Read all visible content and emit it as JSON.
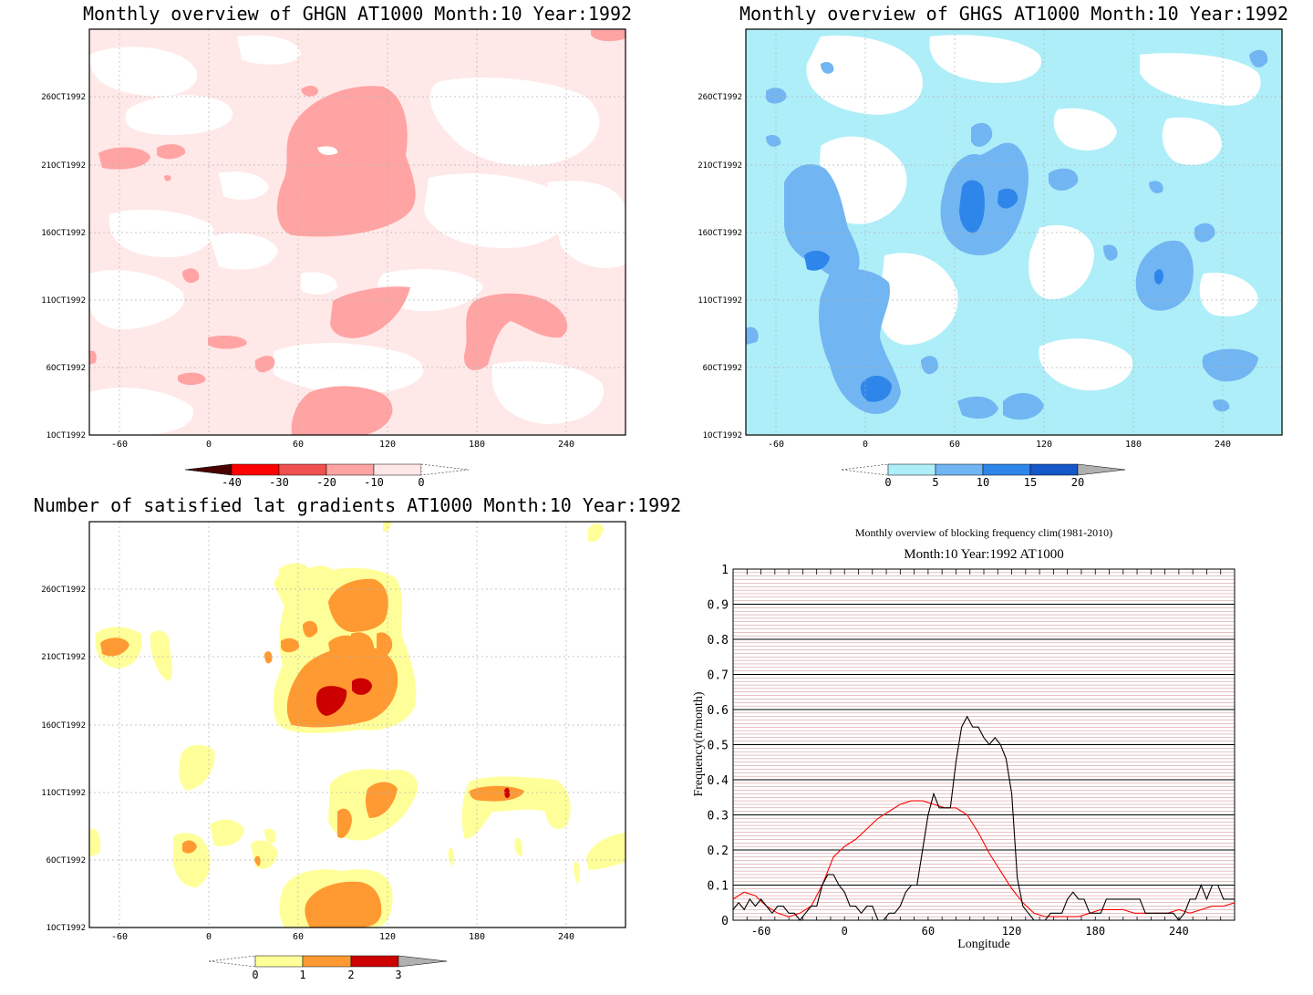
{
  "colors": {
    "red_scale": [
      "#4a0000",
      "#ff0000",
      "#f05050",
      "#ffa3a3",
      "#ffe8e8",
      "#ffffff"
    ],
    "blue_scale": [
      "#ffffff",
      "#aeeef8",
      "#71b5f2",
      "#2f86ea",
      "#1457c8",
      "#b0b0b0"
    ],
    "orange_scale": [
      "#ffffff",
      "#ffff9a",
      "#ff9a32",
      "#cc0000",
      "#b0b0b0"
    ],
    "clim_line": "#ff0000",
    "obs_line": "#000000",
    "grid_major": "#000000",
    "grid_minor": "#a02020"
  },
  "panels": [
    {
      "id": "ghgn",
      "title": "Monthly overview of GHGN AT1000 Month:10 Year:1992",
      "x_ticks": [
        "-60",
        "0",
        "60",
        "120",
        "180",
        "240"
      ],
      "y_ticks": [
        "1OCT1992",
        "6OCT1992",
        "11OCT1992",
        "16OCT1992",
        "21OCT1992",
        "26OCT1992"
      ],
      "colorbar_labels": [
        "-40",
        "-30",
        "-20",
        "-10",
        "0"
      ]
    },
    {
      "id": "ghgs",
      "title": "Monthly overview of GHGS AT1000 Month:10 Year:1992",
      "x_ticks": [
        "-60",
        "0",
        "60",
        "120",
        "180",
        "240"
      ],
      "y_ticks": [
        "1OCT1992",
        "6OCT1992",
        "11OCT1992",
        "16OCT1992",
        "21OCT1992",
        "26OCT1992"
      ],
      "colorbar_labels": [
        "0",
        "5",
        "10",
        "15",
        "20"
      ]
    },
    {
      "id": "lat",
      "title": "Number of satisfied lat gradients AT1000 Month:10 Year:1992",
      "x_ticks": [
        "-60",
        "0",
        "60",
        "120",
        "180",
        "240"
      ],
      "y_ticks": [
        "1OCT1992",
        "6OCT1992",
        "11OCT1992",
        "16OCT1992",
        "21OCT1992",
        "26OCT1992"
      ],
      "colorbar_labels": [
        "0",
        "1",
        "2",
        "3"
      ]
    }
  ],
  "chart_data": {
    "type": "line",
    "title": "Monthly overview of blocking frequency clim(1981-2010)",
    "subtitle": "Month:10 Year:1992  AT1000",
    "xlabel": "Longitude",
    "ylabel": "Frequency(n/month)",
    "xlim": [
      -80,
      280
    ],
    "ylim": [
      0,
      1
    ],
    "x_ticks": [
      -60,
      0,
      60,
      120,
      180,
      240
    ],
    "y_ticks": [
      0,
      0.1,
      0.2,
      0.3,
      0.4,
      0.5,
      0.6,
      0.7,
      0.8,
      0.9,
      1
    ],
    "grid": true,
    "series": [
      {
        "color": "#ff0000",
        "x": [
          -80,
          -72,
          -64,
          -56,
          -48,
          -40,
          -32,
          -24,
          -16,
          -8,
          0,
          8,
          16,
          24,
          32,
          40,
          48,
          56,
          64,
          72,
          80,
          88,
          96,
          104,
          112,
          120,
          128,
          136,
          144,
          152,
          160,
          168,
          176,
          184,
          192,
          200,
          208,
          216,
          224,
          232,
          240,
          248,
          256,
          264,
          272,
          280
        ],
        "y": [
          0.06,
          0.08,
          0.07,
          0.04,
          0.02,
          0.01,
          0.02,
          0.04,
          0.1,
          0.18,
          0.21,
          0.23,
          0.26,
          0.29,
          0.31,
          0.33,
          0.34,
          0.34,
          0.33,
          0.32,
          0.32,
          0.3,
          0.25,
          0.19,
          0.14,
          0.09,
          0.05,
          0.02,
          0.01,
          0.01,
          0.01,
          0.01,
          0.02,
          0.03,
          0.03,
          0.03,
          0.02,
          0.02,
          0.02,
          0.02,
          0.03,
          0.02,
          0.03,
          0.04,
          0.04,
          0.05
        ]
      },
      {
        "color": "#000000",
        "x": [
          -80,
          -76,
          -72,
          -68,
          -64,
          -60,
          -56,
          -52,
          -48,
          -44,
          -40,
          -36,
          -32,
          -28,
          -24,
          -20,
          -16,
          -12,
          -8,
          -4,
          0,
          4,
          8,
          12,
          16,
          20,
          24,
          28,
          32,
          36,
          40,
          44,
          48,
          52,
          56,
          60,
          64,
          68,
          72,
          76,
          80,
          84,
          88,
          92,
          96,
          100,
          104,
          108,
          112,
          116,
          120,
          124,
          128,
          132,
          136,
          140,
          144,
          148,
          152,
          156,
          160,
          164,
          168,
          172,
          176,
          180,
          184,
          188,
          192,
          196,
          200,
          204,
          208,
          212,
          216,
          220,
          224,
          228,
          232,
          236,
          240,
          244,
          248,
          252,
          256,
          260,
          264,
          268,
          272,
          276,
          280
        ],
        "y": [
          0.03,
          0.05,
          0.03,
          0.06,
          0.04,
          0.06,
          0.04,
          0.02,
          0.04,
          0.04,
          0.02,
          0.02,
          0.0,
          0.02,
          0.04,
          0.04,
          0.1,
          0.13,
          0.13,
          0.1,
          0.08,
          0.04,
          0.04,
          0.02,
          0.04,
          0.04,
          0.0,
          0.0,
          0.02,
          0.02,
          0.04,
          0.08,
          0.1,
          0.1,
          0.2,
          0.3,
          0.36,
          0.32,
          0.32,
          0.32,
          0.45,
          0.55,
          0.58,
          0.55,
          0.55,
          0.52,
          0.5,
          0.52,
          0.5,
          0.46,
          0.36,
          0.12,
          0.04,
          0.02,
          0.0,
          0.0,
          0.0,
          0.02,
          0.02,
          0.02,
          0.06,
          0.08,
          0.06,
          0.06,
          0.02,
          0.02,
          0.02,
          0.06,
          0.06,
          0.06,
          0.06,
          0.06,
          0.06,
          0.06,
          0.02,
          0.02,
          0.02,
          0.02,
          0.02,
          0.02,
          0.0,
          0.02,
          0.06,
          0.06,
          0.1,
          0.06,
          0.1,
          0.1,
          0.06,
          0.06,
          0.06
        ]
      }
    ]
  }
}
